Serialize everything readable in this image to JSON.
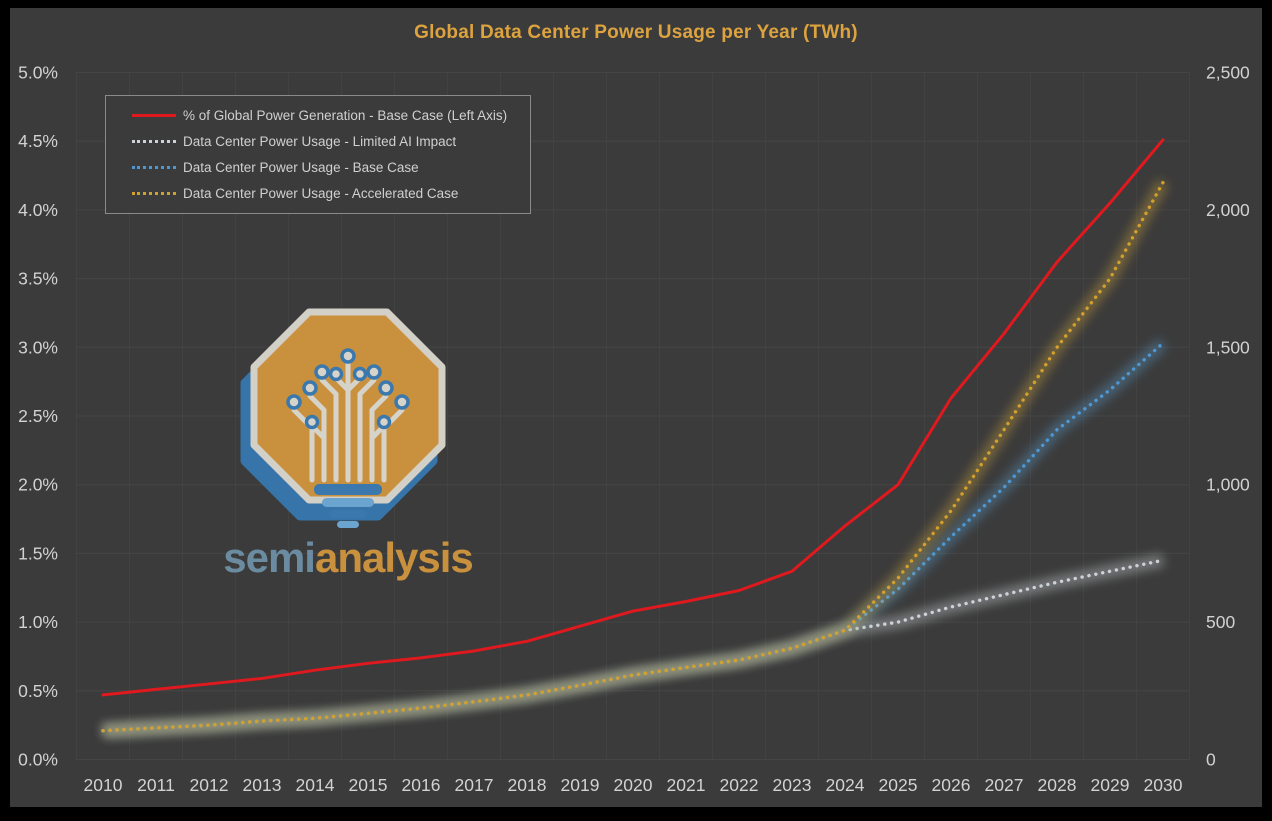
{
  "frame": {
    "bg": "#000000",
    "chart_bg": "#3b3b3b",
    "grid_color": "#484848"
  },
  "title": {
    "text": "Global Data Center Power Usage per Year (TWh)",
    "color": "#dca33f"
  },
  "left_axis": {
    "labels": [
      "5.0%",
      "4.5%",
      "4.0%",
      "3.5%",
      "3.0%",
      "2.5%",
      "2.0%",
      "1.5%",
      "1.0%",
      "0.5%",
      "0.0%"
    ],
    "text_color": "#d2d2d2"
  },
  "right_axis": {
    "labels": [
      "2,500",
      "2,000",
      "1,500",
      "1,000",
      "500",
      "0"
    ],
    "text_color": "#d2d2d2"
  },
  "x_axis": {
    "labels": [
      "2010",
      "2011",
      "2012",
      "2013",
      "2014",
      "2015",
      "2016",
      "2017",
      "2018",
      "2019",
      "2020",
      "2021",
      "2022",
      "2023",
      "2024",
      "2025",
      "2026",
      "2027",
      "2028",
      "2029",
      "2030"
    ],
    "text_color": "#d2d2d2"
  },
  "legend": {
    "items": [
      {
        "label": "% of Global Power Generation - Base Case (Left Axis)",
        "color": "#e0191e",
        "style": "solid"
      },
      {
        "label": "Data Center Power Usage - Limited AI Impact",
        "color": "#ccd2d7",
        "style": "dotted"
      },
      {
        "label": "Data Center Power Usage - Base Case",
        "color": "#4e97d3",
        "style": "dotted"
      },
      {
        "label": "Data Center Power Usage - Accelerated Case",
        "color": "#d2a02c",
        "style": "dotted"
      }
    ]
  },
  "logo": {
    "semi": "semi",
    "analysis": "analysis",
    "badge_color": "#c9913d",
    "outline_color": "#d3d0c8",
    "shadow_color": "#3674a9",
    "circuit_color": "#d6d3cb",
    "node_ring_color": "#3a78ad",
    "semi_color": "#6b8ba1",
    "analysis_color": "#c9913d"
  },
  "chart_data": {
    "type": "line",
    "title": "Global Data Center Power Usage per Year (TWh)",
    "x": [
      2010,
      2011,
      2012,
      2013,
      2014,
      2015,
      2016,
      2017,
      2018,
      2019,
      2020,
      2021,
      2022,
      2023,
      2024,
      2025,
      2026,
      2027,
      2028,
      2029,
      2030
    ],
    "left_axis": {
      "units": "% of global power generation",
      "range": [
        0,
        5.0
      ],
      "tick_step": 0.5
    },
    "right_axis": {
      "units": "TWh",
      "range": [
        0,
        2500
      ],
      "tick_step": 500
    },
    "grid": true,
    "legend_position": "top-left",
    "series": [
      {
        "name": "% of Global Power Generation - Base Case (Left Axis)",
        "axis": "left",
        "style": "solid",
        "color": "#e0191e",
        "values": [
          0.47,
          0.51,
          0.55,
          0.59,
          0.65,
          0.7,
          0.74,
          0.79,
          0.86,
          0.97,
          1.08,
          1.15,
          1.23,
          1.37,
          1.7,
          2.0,
          2.63,
          3.1,
          3.62,
          4.05,
          4.51
        ]
      },
      {
        "name": "Data Center Power Usage - Limited AI Impact",
        "axis": "right",
        "style": "dotted",
        "color": "#ccd2d7",
        "glow": "#e8eef2",
        "values": [
          105,
          115,
          125,
          140,
          150,
          168,
          187,
          210,
          235,
          270,
          307,
          335,
          362,
          405,
          470,
          500,
          555,
          600,
          645,
          685,
          725
        ]
      },
      {
        "name": "Data Center Power Usage - Base Case",
        "axis": "right",
        "style": "dotted",
        "color": "#4e97d3",
        "glow": "#5fa8dc",
        "values": [
          105,
          115,
          125,
          140,
          150,
          168,
          187,
          210,
          235,
          270,
          307,
          335,
          362,
          405,
          470,
          620,
          810,
          990,
          1200,
          1345,
          1515
        ]
      },
      {
        "name": "Data Center Power Usage - Accelerated Case",
        "axis": "right",
        "style": "dotted",
        "color": "#d2a02c",
        "glow": "#e3b23c",
        "values": [
          105,
          115,
          125,
          140,
          150,
          168,
          187,
          210,
          235,
          270,
          307,
          335,
          362,
          405,
          470,
          660,
          905,
          1200,
          1500,
          1750,
          2100
        ]
      }
    ]
  }
}
